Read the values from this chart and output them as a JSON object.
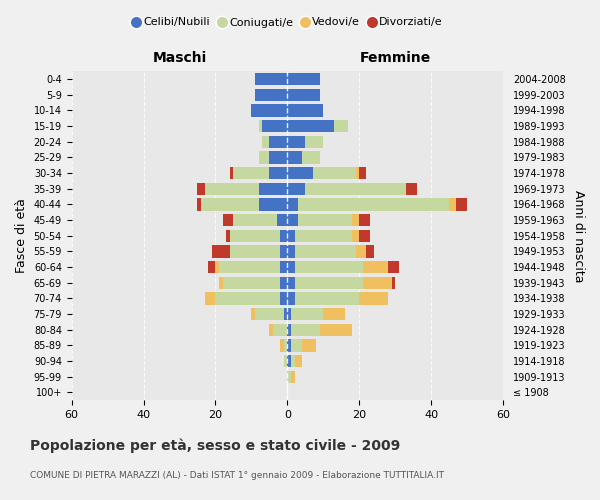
{
  "age_groups": [
    "100+",
    "95-99",
    "90-94",
    "85-89",
    "80-84",
    "75-79",
    "70-74",
    "65-69",
    "60-64",
    "55-59",
    "50-54",
    "45-49",
    "40-44",
    "35-39",
    "30-34",
    "25-29",
    "20-24",
    "15-19",
    "10-14",
    "5-9",
    "0-4"
  ],
  "birth_years": [
    "≤ 1908",
    "1909-1913",
    "1914-1918",
    "1919-1923",
    "1924-1928",
    "1929-1933",
    "1934-1938",
    "1939-1943",
    "1944-1948",
    "1949-1953",
    "1954-1958",
    "1959-1963",
    "1964-1968",
    "1969-1973",
    "1974-1978",
    "1979-1983",
    "1984-1988",
    "1989-1993",
    "1994-1998",
    "1999-2003",
    "2004-2008"
  ],
  "colors": {
    "celibi": "#4472c4",
    "coniugati": "#c5d8a0",
    "vedovi": "#f0c060",
    "divorziati": "#c0392b"
  },
  "maschi": {
    "celibi": [
      0,
      0,
      0,
      0,
      0,
      1,
      2,
      2,
      2,
      2,
      2,
      3,
      8,
      8,
      5,
      5,
      5,
      7,
      10,
      9,
      9
    ],
    "coniugati": [
      0,
      0,
      1,
      1,
      4,
      8,
      18,
      16,
      17,
      14,
      14,
      12,
      16,
      15,
      10,
      3,
      2,
      1,
      0,
      0,
      0
    ],
    "vedovi": [
      0,
      0,
      0,
      1,
      1,
      1,
      3,
      1,
      1,
      0,
      0,
      0,
      0,
      0,
      0,
      0,
      0,
      0,
      0,
      0,
      0
    ],
    "divorziati": [
      0,
      0,
      0,
      0,
      0,
      0,
      0,
      0,
      2,
      5,
      1,
      3,
      1,
      2,
      1,
      0,
      0,
      0,
      0,
      0,
      0
    ]
  },
  "femmine": {
    "celibi": [
      0,
      0,
      1,
      1,
      1,
      1,
      2,
      2,
      2,
      2,
      2,
      3,
      3,
      5,
      7,
      4,
      5,
      13,
      10,
      9,
      9
    ],
    "coniugati": [
      0,
      1,
      1,
      3,
      8,
      9,
      18,
      19,
      19,
      17,
      16,
      15,
      42,
      28,
      12,
      5,
      5,
      4,
      0,
      0,
      0
    ],
    "vedovi": [
      0,
      1,
      2,
      4,
      9,
      6,
      8,
      8,
      7,
      3,
      2,
      2,
      2,
      0,
      1,
      0,
      0,
      0,
      0,
      0,
      0
    ],
    "divorziati": [
      0,
      0,
      0,
      0,
      0,
      0,
      0,
      1,
      3,
      2,
      3,
      3,
      3,
      3,
      2,
      0,
      0,
      0,
      0,
      0,
      0
    ]
  },
  "xlim": 60,
  "title": "Popolazione per età, sesso e stato civile - 2009",
  "subtitle": "COMUNE DI PIETRA MARAZZI (AL) - Dati ISTAT 1° gennaio 2009 - Elaborazione TUTTITALIA.IT",
  "ylabel_left": "Fasce di età",
  "ylabel_right": "Anni di nascita",
  "xlabel_left": "Maschi",
  "xlabel_right": "Femmine",
  "legend_labels": [
    "Celibi/Nubili",
    "Coniugati/e",
    "Vedovi/e",
    "Divorziati/e"
  ],
  "bg_color": "#f0f0f0",
  "plot_bg_color": "#e8e8e8"
}
